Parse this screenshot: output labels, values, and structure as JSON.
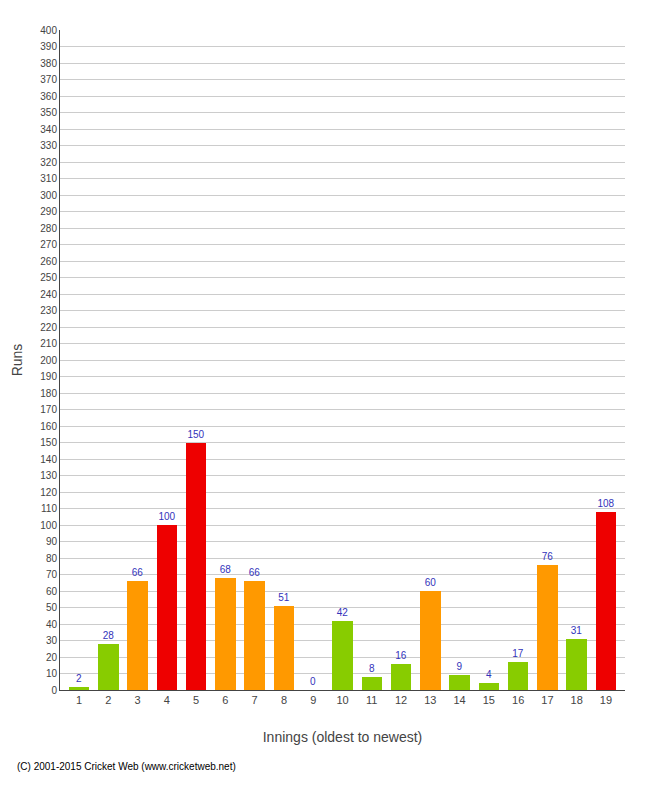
{
  "chart_data": {
    "type": "bar",
    "xlabel": "Innings (oldest to newest)",
    "ylabel": "Runs",
    "annotations": [
      "(C) 2001-2015 Cricket Web (www.cricketweb.net)"
    ],
    "x": [
      1,
      2,
      3,
      4,
      5,
      6,
      7,
      8,
      9,
      10,
      11,
      12,
      13,
      14,
      15,
      16,
      17,
      18,
      19
    ],
    "values": [
      2,
      28,
      66,
      100,
      150,
      68,
      66,
      51,
      0,
      42,
      8,
      16,
      60,
      9,
      4,
      17,
      76,
      31,
      108
    ],
    "colors": [
      "#88cc00",
      "#88cc00",
      "#ff9900",
      "#ee0000",
      "#ee0000",
      "#ff9900",
      "#ff9900",
      "#ff9900",
      "#88cc00",
      "#88cc00",
      "#88cc00",
      "#88cc00",
      "#ff9900",
      "#88cc00",
      "#88cc00",
      "#88cc00",
      "#ff9900",
      "#88cc00",
      "#ee0000"
    ],
    "xlim": [
      0.35,
      19.65
    ],
    "xticks": [
      1,
      2,
      3,
      4,
      5,
      6,
      7,
      8,
      9,
      10,
      11,
      12,
      13,
      14,
      15,
      16,
      17,
      18,
      19
    ],
    "ylim": [
      0,
      400
    ],
    "yticks": [
      0,
      10,
      20,
      30,
      40,
      50,
      60,
      70,
      80,
      90,
      100,
      110,
      120,
      130,
      140,
      150,
      160,
      170,
      180,
      190,
      200,
      210,
      220,
      230,
      240,
      250,
      260,
      270,
      280,
      290,
      300,
      310,
      320,
      330,
      340,
      350,
      360,
      370,
      380,
      390,
      400
    ],
    "grid": "y",
    "data_labels": true
  }
}
